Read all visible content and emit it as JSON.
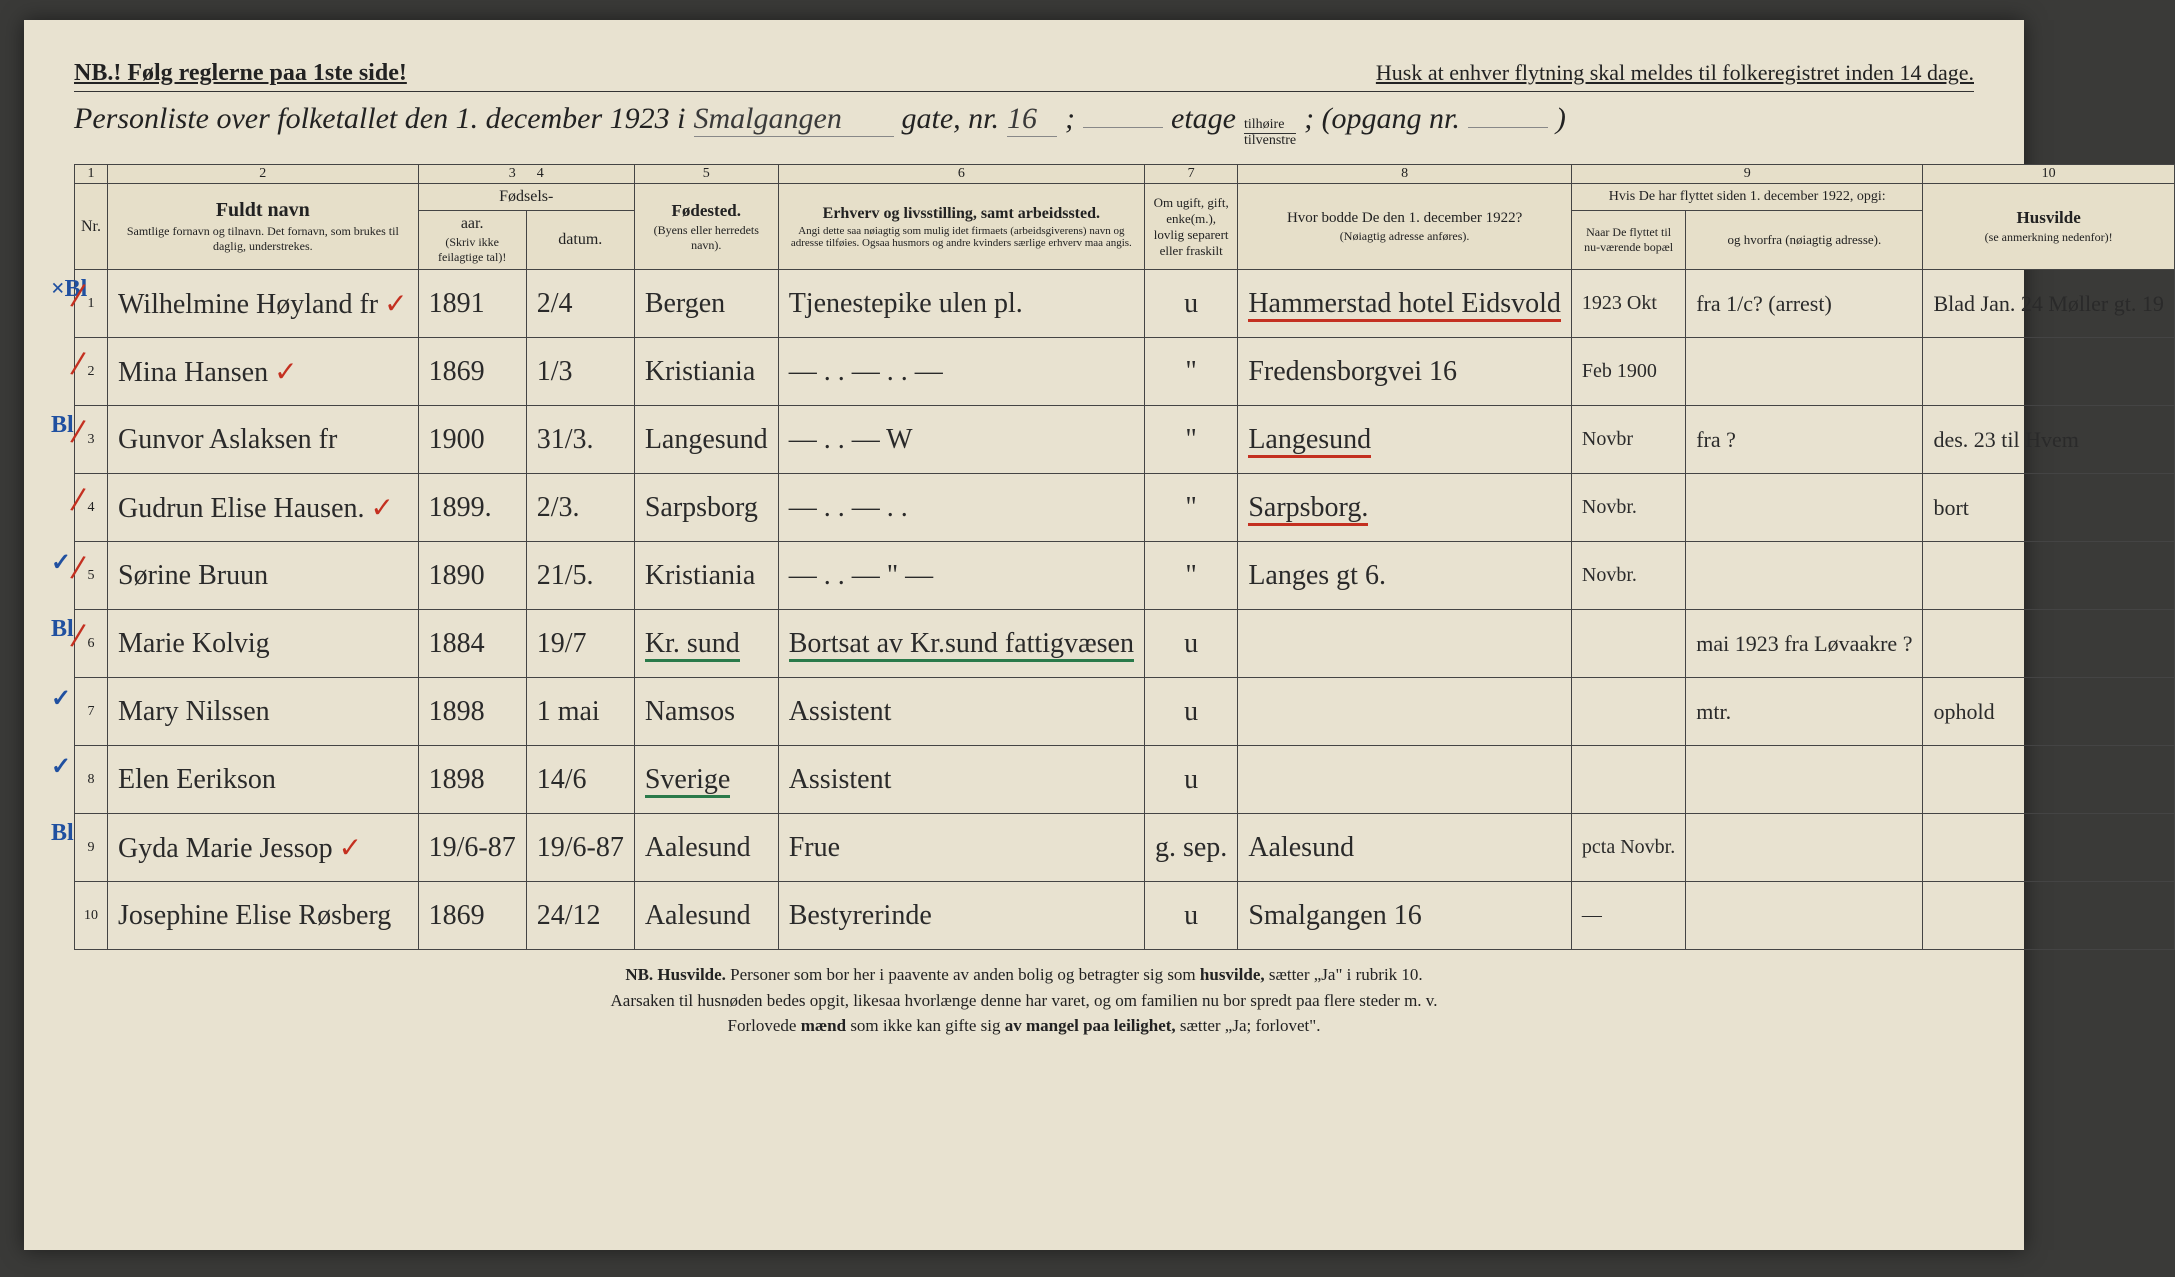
{
  "header": {
    "nb": "NB.! Følg reglerne paa 1ste side!",
    "husk": "Husk at enhver flytning skal meldes til folkeregistret inden 14 dage.",
    "title_prefix": "Personliste over folketallet den 1. december 1923 i",
    "street": "Smalgangen",
    "gate_label": "gate, nr.",
    "street_nr": "16",
    "etage_label": "etage",
    "fraction_top": "tilhøire",
    "fraction_bot": "tilvenstre",
    "opgang_label": "; (opgang nr.",
    "close_paren": ")"
  },
  "colnums": [
    "1",
    "2",
    "3",
    "4",
    "5",
    "6",
    "7",
    "8",
    "9",
    "10"
  ],
  "columns": {
    "nr": "Nr.",
    "name_title": "Fuldt navn",
    "name_sub": "Samtlige fornavn og tilnavn. Det fornavn, som brukes til daglig, understrekes.",
    "fodsels": "Fødsels-",
    "aar": "aar.",
    "datum": "datum.",
    "aar_sub": "(Skriv ikke feilagtige tal)!",
    "fodested": "Fødested.",
    "fodested_sub": "(Byens eller herredets navn).",
    "erhverv": "Erhverv og livsstilling, samt arbeidssted.",
    "erhverv_sub": "Angi dette saa nøiagtig som mulig idet firmaets (arbeidsgiverens) navn og adresse tilføies. Ogsaa husmors og andre kvinders særlige erhverv maa angis.",
    "marital": "Om ugift, gift, enke(m.), lovlig separert eller fraskilt",
    "addr1922": "Hvor bodde De den 1. december 1922?",
    "addr1922_sub": "(Nøiagtig adresse anføres).",
    "col9_title": "Hvis De har flyttet siden 1. december 1922, opgi:",
    "moved": "Naar De flyttet til nu-værende bopæl",
    "whence": "og hvorfra (nøiagtig adresse).",
    "husvilde": "Husvilde",
    "husvilde_sub": "(se anmerkning nedenfor)!"
  },
  "rows": [
    {
      "nr": "1",
      "margin": "×Bl",
      "name": "Wilhelmine Høyland   fr",
      "check": "✓",
      "year": "1891",
      "date": "2/4",
      "birthplace": "Bergen",
      "occupation": "Tjenestepike ulen pl.",
      "marital": "u",
      "addr1922": "Hammerstad hotel Eidsvold",
      "addr_class": "red-underline",
      "moved": "1923 Okt",
      "whence": "fra 1/c? (arrest)",
      "husvilde": "Blad Jan. 24 Møller gt. 19",
      "hus_class": "green-text"
    },
    {
      "nr": "2",
      "margin": "",
      "name": "Mina Hansen",
      "check": "✓",
      "year": "1869",
      "date": "1/3",
      "birthplace": "Kristiania",
      "occupation": "—  . .  —      . .  —",
      "marital": "\"",
      "addr1922": "Fredensborgvei 16",
      "addr_class": "",
      "moved": "Feb 1900",
      "whence": "",
      "husvilde": "",
      "hus_class": ""
    },
    {
      "nr": "3",
      "margin": "Bl",
      "name": "Gunvor Aslaksen    fr",
      "check": "",
      "year": "1900",
      "date": "31/3.",
      "birthplace": "Langesund",
      "occupation": "—  . .  —        W",
      "marital": "\"",
      "addr1922": "Langesund",
      "addr_class": "red-underline",
      "moved": "Novbr",
      "whence": "fra ?",
      "husvilde": "des. 23 til Hvem",
      "hus_class": "green-text"
    },
    {
      "nr": "4",
      "margin": "",
      "name": "Gudrun Elise Hausen.",
      "check": "✓",
      "year": "1899.",
      "date": "2/3.",
      "birthplace": "Sarpsborg",
      "occupation": "—  . .  —      . . ",
      "marital": "\"",
      "addr1922": "Sarpsborg.",
      "addr_class": "red-underline",
      "moved": "Novbr.",
      "whence": "",
      "husvilde": "bort",
      "hus_class": "green-text"
    },
    {
      "nr": "5",
      "margin": "✓",
      "name": "Sørine Bruun",
      "check": "",
      "year": "1890",
      "date": "21/5.",
      "birthplace": "Kristiania",
      "occupation": "— . . —  \"  —",
      "marital": "\"",
      "addr1922": "Langes gt 6.",
      "addr_class": "",
      "moved": "Novbr.",
      "whence": "",
      "husvilde": "",
      "hus_class": ""
    },
    {
      "nr": "6",
      "margin": "Bl",
      "name": "Marie Kolvig",
      "check": "",
      "year": "1884",
      "date": "19/7",
      "birthplace": "Kr. sund",
      "occupation": "Bortsat av Kr.sund fattigvæsen",
      "marital": "u",
      "addr1922": "",
      "addr_class": "",
      "moved": "",
      "whence": "mai 1923 fra Løvaakre ?",
      "husvilde": "",
      "hus_class": "green-text"
    },
    {
      "nr": "7",
      "margin": "✓",
      "name": "Mary Nilssen",
      "check": "",
      "year": "1898",
      "date": "1 mai",
      "birthplace": "Namsos",
      "occupation": "Assistent",
      "marital": "u",
      "addr1922": "",
      "addr_class": "",
      "moved": "",
      "whence": "mtr.",
      "husvilde": "ophold",
      "hus_class": "green-text"
    },
    {
      "nr": "8",
      "margin": "✓",
      "name": "Elen Eerikson",
      "check": "",
      "year": "1898",
      "date": "14/6",
      "birthplace": "Sverige",
      "occupation": "Assistent",
      "marital": "u",
      "addr1922": "",
      "addr_class": "",
      "moved": "",
      "whence": "",
      "husvilde": "",
      "hus_class": ""
    },
    {
      "nr": "9",
      "margin": "Bl",
      "name": "Gyda Marie Jessop",
      "check": "✓",
      "year": "19/6-87",
      "date": "19/6-87",
      "birthplace": "Aalesund",
      "occupation": "Frue",
      "marital": "g. sep.",
      "addr1922": "Aalesund",
      "addr_class": "",
      "moved": "pcta Novbr.",
      "whence": "",
      "husvilde": "",
      "hus_class": ""
    },
    {
      "nr": "10",
      "margin": "",
      "name": "Josephine Elise Røsberg",
      "check": "",
      "year": "1869",
      "date": "24/12",
      "birthplace": "Aalesund",
      "occupation": "Bestyrerinde",
      "marital": "u",
      "addr1922": "Smalgangen 16",
      "addr_class": "",
      "moved": "—",
      "whence": "",
      "husvilde": "",
      "hus_class": ""
    }
  ],
  "footer": {
    "l1a": "NB. Husvilde.",
    "l1b": " Personer som bor her i paavente av anden bolig og betragter sig som ",
    "l1c": "husvilde,",
    "l1d": " sætter „Ja\" i rubrik 10.",
    "l2": "Aarsaken til husnøden bedes opgit, likesaa hvorlænge denne har varet, og om familien nu bor spredt paa flere steder m. v.",
    "l3a": "Forlovede ",
    "l3b": "mænd",
    "l3c": " som ikke kan gifte sig ",
    "l3d": "av mangel paa leilighet,",
    "l3e": " sætter „Ja; forlovet\"."
  }
}
